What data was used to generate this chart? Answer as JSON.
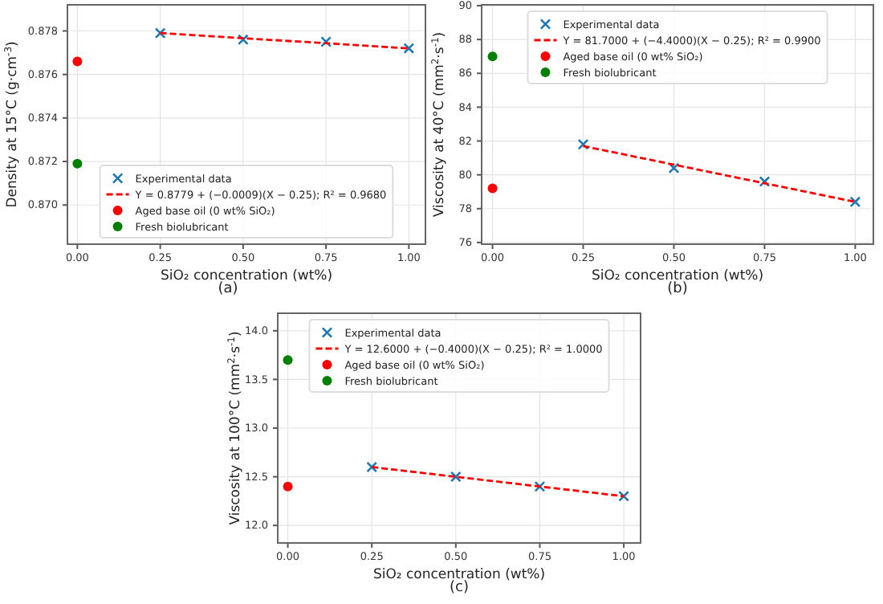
{
  "chart_data": [
    {
      "type": "scatter",
      "xlabel": "SiO₂ concentration (wt%)",
      "ylabel": "Density at 15°C (g·cm$^{-3}$)",
      "annotations": [
        "(a)"
      ],
      "grid": true,
      "legend": "bottom",
      "xlim": [
        -0.03,
        1.05
      ],
      "xticks": [
        {
          "value": 0,
          "label": "0.00"
        },
        {
          "value": 0.25,
          "label": "0.25"
        },
        {
          "value": 0.5,
          "label": "0.50"
        },
        {
          "value": 0.75,
          "label": "0.75"
        },
        {
          "value": 1,
          "label": "1.00"
        }
      ],
      "ylim": [
        0.8682,
        0.8792
      ],
      "yticks": [
        {
          "value": 0.87,
          "label": "0.870"
        },
        {
          "value": 0.872,
          "label": "0.872"
        },
        {
          "value": 0.874,
          "label": "0.874"
        },
        {
          "value": 0.876,
          "label": "0.876"
        },
        {
          "value": 0.878,
          "label": "0.878"
        }
      ],
      "series": [
        {
          "name": "Experimental data",
          "marker": "cross",
          "color": "#1f77b4",
          "x": [
            0.25,
            0.5,
            0.75,
            1
          ],
          "values": [
            0.8779,
            0.8776,
            0.8775,
            0.8772
          ]
        },
        {
          "name": "Y = 0.8779 + (−0.0009)(X − 0.25);  R² = 0.9680",
          "type": "line",
          "line_style": "dashed",
          "marker": "none",
          "color": "#ff0000",
          "x": [
            0.25,
            1
          ],
          "values": [
            0.8779,
            0.8772
          ]
        },
        {
          "name": "Aged base oil (0 wt% SiO₂)",
          "type": "scatter",
          "marker": "circle",
          "color": "#ff0000",
          "x": [
            0
          ],
          "values": [
            0.8766
          ]
        },
        {
          "name": "Fresh biolubricant",
          "type": "scatter",
          "marker": "circle",
          "color": "#008000",
          "x": [
            0
          ],
          "values": [
            0.8719
          ]
        }
      ]
    },
    {
      "type": "scatter",
      "xlabel": "SiO₂ concentration (wt%)",
      "ylabel": "Viscosity at 40°C (mm$^{2}$·s$^{-1}$)",
      "annotations": [
        "(b)"
      ],
      "grid": true,
      "legend": "top",
      "xlim": [
        -0.03,
        1.05
      ],
      "xticks": [
        {
          "value": 0,
          "label": "0.00"
        },
        {
          "value": 0.25,
          "label": "0.25"
        },
        {
          "value": 0.5,
          "label": "0.50"
        },
        {
          "value": 0.75,
          "label": "0.75"
        },
        {
          "value": 1,
          "label": "1.00"
        }
      ],
      "ylim": [
        75.9,
        90.05
      ],
      "yticks": [
        76,
        78,
        80,
        82,
        84,
        86,
        88,
        90
      ],
      "series": [
        {
          "name": "Experimental data",
          "marker": "cross",
          "color": "#1f77b4",
          "x": [
            0.25,
            0.5,
            0.75,
            1
          ],
          "values": [
            81.8,
            80.4,
            79.6,
            78.4
          ]
        },
        {
          "name": "Y = 81.7000 + (−4.4000)(X − 0.25);  R² = 0.9900",
          "type": "line",
          "line_style": "dashed",
          "marker": "none",
          "color": "#ff0000",
          "x": [
            0.25,
            1
          ],
          "values": [
            81.7,
            78.4
          ]
        },
        {
          "name": "Aged base oil (0 wt% SiO₂)",
          "type": "scatter",
          "marker": "circle",
          "color": "#ff0000",
          "x": [
            0
          ],
          "values": [
            79.2
          ]
        },
        {
          "name": "Fresh biolubricant",
          "type": "scatter",
          "marker": "circle",
          "color": "#008000",
          "x": [
            0
          ],
          "values": [
            87.0
          ]
        }
      ]
    },
    {
      "type": "scatter",
      "xlabel": "SiO₂ concentration (wt%)",
      "ylabel": "Viscosity at 100°C (mm$^{2}$·s$^{-1}$)",
      "annotations": [
        "(c)"
      ],
      "grid": true,
      "legend": "top",
      "xlim": [
        -0.03,
        1.05
      ],
      "xticks": [
        {
          "value": 0,
          "label": "0.00"
        },
        {
          "value": 0.25,
          "label": "0.25"
        },
        {
          "value": 0.5,
          "label": "0.50"
        },
        {
          "value": 0.75,
          "label": "0.75"
        },
        {
          "value": 1,
          "label": "1.00"
        }
      ],
      "ylim": [
        11.82,
        14.18
      ],
      "yticks": [
        {
          "value": 12,
          "label": "12.0"
        },
        {
          "value": 12.5,
          "label": "12.5"
        },
        {
          "value": 13,
          "label": "13.0"
        },
        {
          "value": 13.5,
          "label": "13.5"
        },
        {
          "value": 14,
          "label": "14.0"
        }
      ],
      "series": [
        {
          "name": "Experimental data",
          "marker": "cross",
          "color": "#1f77b4",
          "x": [
            0.25,
            0.5,
            0.75,
            1
          ],
          "values": [
            12.6,
            12.5,
            12.4,
            12.3
          ]
        },
        {
          "name": "Y = 12.6000 + (−0.4000)(X − 0.25);  R² = 1.0000",
          "type": "line",
          "line_style": "dashed",
          "marker": "none",
          "color": "#ff0000",
          "x": [
            0.25,
            1
          ],
          "values": [
            12.6,
            12.3
          ]
        },
        {
          "name": "Aged base oil (0 wt% SiO₂)",
          "type": "scatter",
          "marker": "circle",
          "color": "#ff0000",
          "x": [
            0
          ],
          "values": [
            12.4
          ]
        },
        {
          "name": "Fresh biolubricant",
          "type": "scatter",
          "marker": "circle",
          "color": "#008000",
          "x": [
            0
          ],
          "values": [
            13.7
          ]
        }
      ]
    }
  ]
}
